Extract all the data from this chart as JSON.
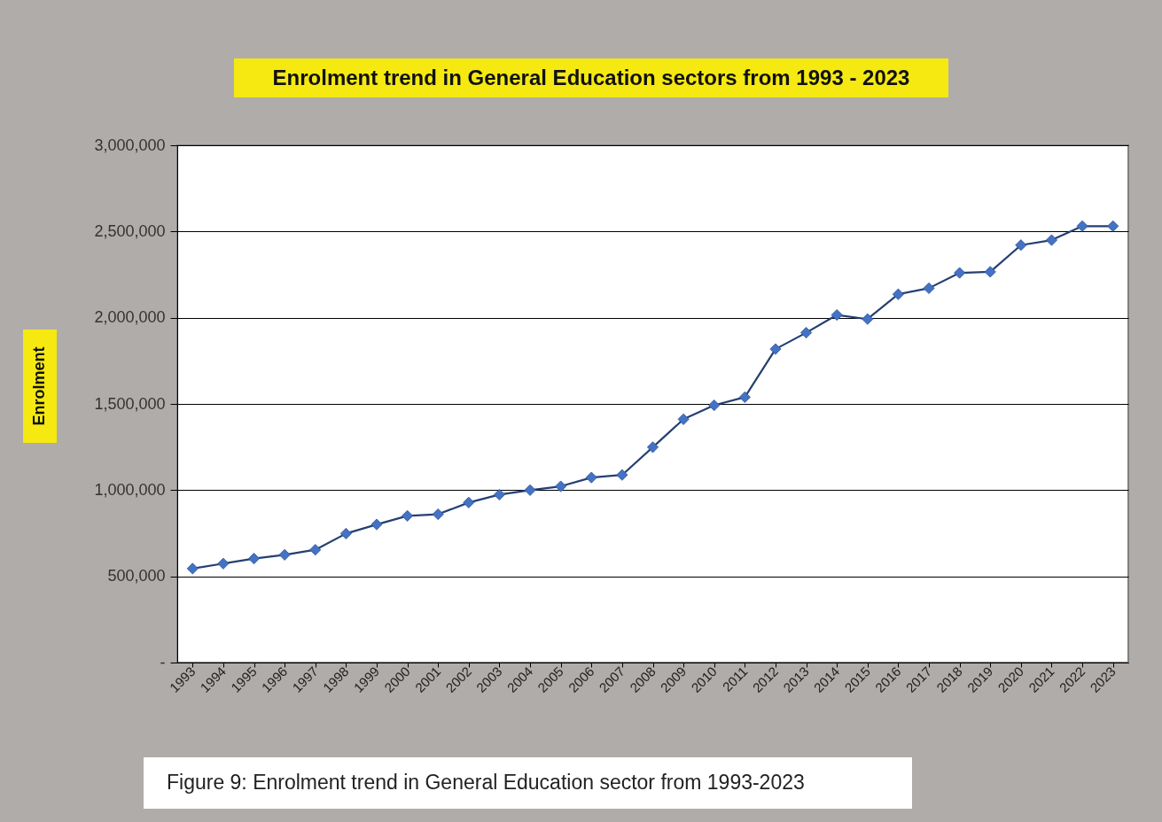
{
  "chart_data": {
    "type": "line",
    "title": "Enrolment trend in General Education sectors from 1993 - 2023",
    "ylabel": "Enrolment",
    "categories": [
      "1993",
      "1994",
      "1995",
      "1996",
      "1997",
      "1998",
      "1999",
      "2000",
      "2001",
      "2002",
      "2003",
      "2004",
      "2005",
      "2006",
      "2007",
      "2008",
      "2009",
      "2010",
      "2011",
      "2012",
      "2013",
      "2014",
      "2015",
      "2016",
      "2017",
      "2018",
      "2019",
      "2020",
      "2021",
      "2022",
      "2023"
    ],
    "series": [
      {
        "color": "#4472c4",
        "values": [
          545000,
          574000,
          603000,
          625000,
          654000,
          748000,
          801000,
          851000,
          860000,
          928000,
          974000,
          1000000,
          1022000,
          1073000,
          1088000,
          1249000,
          1411000,
          1492000,
          1539000,
          1818000,
          1913000,
          2016000,
          1992000,
          2136000,
          2171000,
          2260000,
          2266000,
          2421000,
          2450000,
          2531000,
          2531000
        ]
      }
    ],
    "ylim": [
      0,
      3000000
    ],
    "yticks": [
      {
        "value": 0,
        "label": "-"
      },
      {
        "value": 500000,
        "label": "500,000"
      },
      {
        "value": 1000000,
        "label": "1,000,000"
      },
      {
        "value": 1500000,
        "label": "1,500,000"
      },
      {
        "value": 2000000,
        "label": "2,000,000"
      },
      {
        "value": 2500000,
        "label": "2,500,000"
      },
      {
        "value": 3000000,
        "label": "3,000,000"
      }
    ],
    "grid": "y",
    "marker": "diamond",
    "line_style": "solid",
    "annotations": [
      "Figure 9: Enrolment trend in General Education sector from 1993-2023"
    ]
  }
}
